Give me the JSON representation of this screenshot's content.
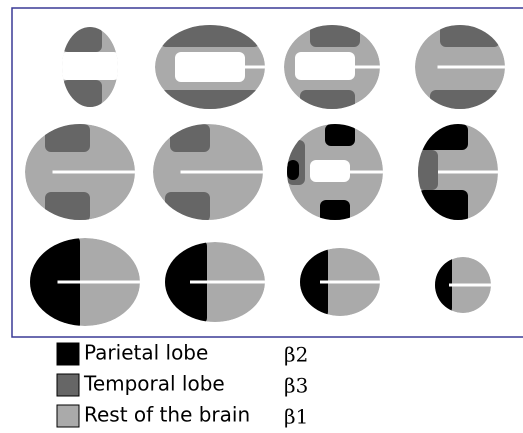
{
  "legend": [
    {
      "label": "Parietal lobe",
      "symbol": "β2"
    },
    {
      "label": "Temporal lobe",
      "symbol": "β3"
    },
    {
      "label": "Rest of the brain",
      "symbol": "β1"
    }
  ]
}
